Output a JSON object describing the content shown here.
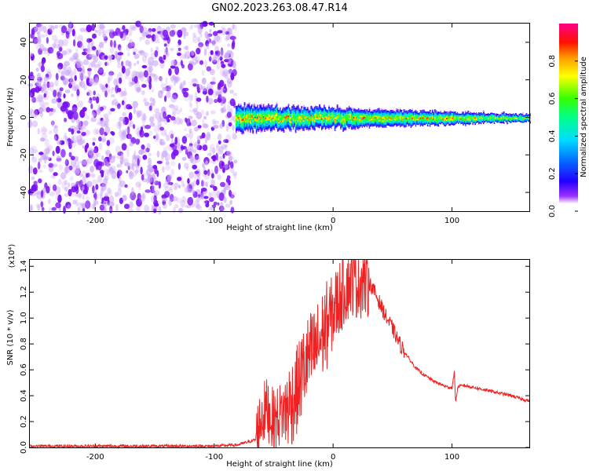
{
  "page": {
    "title": "GN02.2023.263.08.47.R14"
  },
  "colors": {
    "sigma_colormap": [
      "#ffffff",
      "#7f00ff",
      "#0000ff",
      "#00bfff",
      "#00ff7f",
      "#7fff00",
      "#ffff00",
      "#ff7f00",
      "#ff0000",
      "#ff007f"
    ],
    "snr_line": "#ee2222"
  },
  "chart_data": [
    {
      "type": "heatmap",
      "title": "GN02.2023.263.08.47.R14",
      "xlabel": "Height of straight line (km)",
      "ylabel": "Frequency (Hz)",
      "xlim": [
        -255,
        165
      ],
      "ylim": [
        -50,
        50
      ],
      "xticks": [
        -200,
        -100,
        0,
        100
      ],
      "xtick_labels": [
        "-200",
        "-100",
        "0",
        "100"
      ],
      "yticks": [
        -40,
        -20,
        0,
        20,
        40
      ],
      "ytick_labels": [
        "-40",
        "-20",
        "0",
        "20",
        "40"
      ],
      "colorbar": {
        "label": "Normalized spectral amplitude",
        "range": [
          0,
          1
        ],
        "ticks": [
          0,
          0.2,
          0.4,
          0.6,
          0.8
        ],
        "tick_labels": [
          "0.0",
          "0.2",
          "0.4",
          "0.6",
          "0.8"
        ]
      },
      "regions": [
        {
          "kind": "noise",
          "x_range": [
            -255,
            -82
          ],
          "y_range": [
            -50,
            50
          ],
          "amplitude": [
            0.0,
            0.15
          ]
        },
        {
          "kind": "signal_band",
          "x_range": [
            -82,
            165
          ],
          "center_hz": 0,
          "half_width_hz": [
            1.5,
            7
          ],
          "peak_amplitude": 0.95
        }
      ]
    },
    {
      "type": "line",
      "xlabel": "Height of straight line (km)",
      "ylabel": "SNR (10 * v/v)",
      "y_multiplier": "(x10⁴)",
      "xlim": [
        -255,
        165
      ],
      "ylim": [
        0.0,
        1.45
      ],
      "xticks": [
        -200,
        -100,
        0,
        100
      ],
      "xtick_labels": [
        "-200",
        "-100",
        "0",
        "100"
      ],
      "yticks": [
        0.0,
        0.2,
        0.4,
        0.6,
        0.8,
        1.0,
        1.2,
        1.4
      ],
      "ytick_labels": [
        "0.0",
        "0.2",
        "0.4",
        "0.6",
        "0.8",
        "1.0",
        "1.2",
        "1.4"
      ],
      "series": [
        {
          "x": [
            -255,
            -200,
            -150,
            -100,
            -80,
            -65,
            -60,
            -55,
            -50,
            -45,
            -40,
            -35,
            -30,
            -25,
            -20,
            -15,
            -10,
            -5,
            0,
            5,
            10,
            15,
            18,
            20,
            25,
            30,
            35,
            40,
            45,
            50,
            55,
            60,
            65,
            70,
            75,
            80,
            85,
            90,
            95,
            100,
            102,
            103,
            105,
            110,
            115,
            120,
            130,
            140,
            150,
            160,
            165
          ],
          "y": [
            0.01,
            0.01,
            0.01,
            0.01,
            0.02,
            0.06,
            0.25,
            0.3,
            0.2,
            0.25,
            0.3,
            0.35,
            0.45,
            0.6,
            0.7,
            0.75,
            0.85,
            0.95,
            1.05,
            1.15,
            1.25,
            1.3,
            1.32,
            1.28,
            1.3,
            1.28,
            1.2,
            1.1,
            1.0,
            0.92,
            0.82,
            0.74,
            0.67,
            0.61,
            0.57,
            0.54,
            0.51,
            0.49,
            0.47,
            0.46,
            0.58,
            0.35,
            0.47,
            0.48,
            0.47,
            0.46,
            0.44,
            0.42,
            0.4,
            0.37,
            0.36
          ],
          "envelope": [
            {
              "x_range": [
                -65,
                -40
              ],
              "amplitude": 0.25
            },
            {
              "x_range": [
                -40,
                -5
              ],
              "amplitude": 0.35
            },
            {
              "x_range": [
                -5,
                30
              ],
              "amplitude": 0.3
            },
            {
              "x_range": [
                30,
                60
              ],
              "amplitude": 0.06
            }
          ]
        }
      ]
    }
  ]
}
